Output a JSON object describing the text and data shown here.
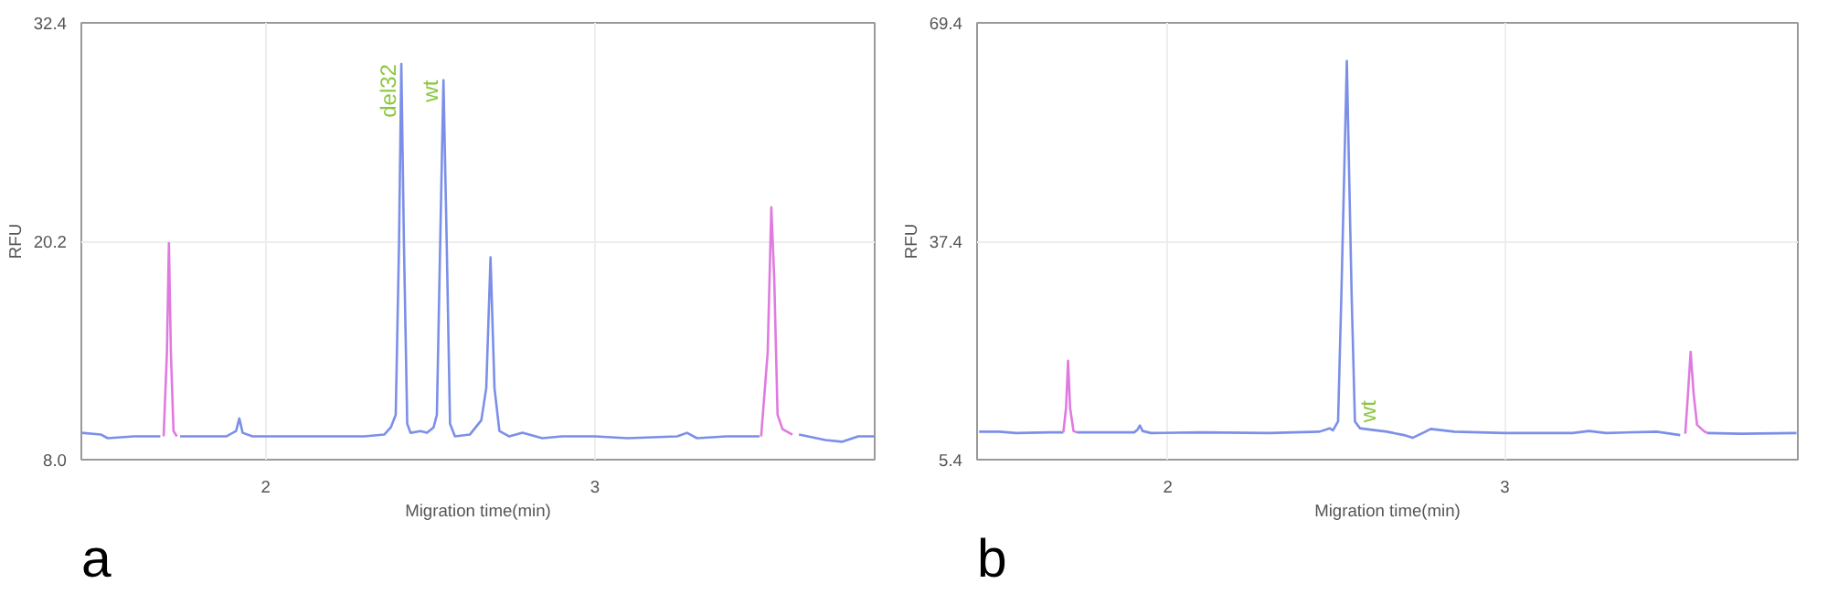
{
  "chart_data": [
    {
      "type": "line",
      "xlabel": "Migration time(min)",
      "ylabel": "RFU",
      "xlim": [
        1.44,
        3.85
      ],
      "ylim": [
        8.0,
        32.4
      ],
      "xticks": [
        2,
        3
      ],
      "yticks": [
        {
          "value": 8.0,
          "label": "8.0"
        },
        20.2,
        32.4
      ],
      "grid": true,
      "annotations": [
        {
          "text": "del32",
          "x": 2.412,
          "y": 30.1
        },
        {
          "text": "wt",
          "x": 2.54,
          "y": 29.2
        },
        "a"
      ],
      "series": [
        {
          "color": "#7b8fe8",
          "x": [
            1.44,
            1.5,
            1.52,
            1.6,
            1.68,
            1.7,
            1.74,
            1.8,
            1.88,
            1.91,
            1.92,
            1.93,
            1.96,
            2.1,
            2.3,
            2.36,
            2.38,
            2.395,
            2.405,
            2.412,
            2.42,
            2.43,
            2.44,
            2.47,
            2.49,
            2.51,
            2.52,
            2.53,
            2.54,
            2.55,
            2.56,
            2.575,
            2.62,
            2.655,
            2.67,
            2.683,
            2.695,
            2.71,
            2.74,
            2.78,
            2.84,
            2.9,
            3.0,
            3.1,
            3.25,
            3.28,
            3.31,
            3.4,
            3.5,
            3.55,
            3.62,
            3.7,
            3.75,
            3.8,
            3.85
          ],
          "values": [
            9.5,
            9.4,
            9.2,
            9.3,
            9.3,
            null,
            9.3,
            9.3,
            9.3,
            9.6,
            10.3,
            9.5,
            9.3,
            9.3,
            9.3,
            9.4,
            9.8,
            10.5,
            20,
            30.1,
            20,
            10,
            9.5,
            9.6,
            9.5,
            9.8,
            10.5,
            20,
            29.2,
            20,
            10,
            9.3,
            9.4,
            10.2,
            12,
            19.3,
            12,
            9.6,
            9.3,
            9.5,
            9.2,
            9.3,
            9.3,
            9.2,
            9.3,
            9.5,
            9.2,
            9.3,
            9.3,
            null,
            9.4,
            9.1,
            9.0,
            9.3,
            9.3
          ]
        },
        {
          "color": "#e07ae0",
          "x": [
            1.69,
            1.7,
            1.706,
            1.712,
            1.72,
            1.73,
            2.0,
            3.505,
            3.525,
            3.536,
            3.545,
            3.555,
            3.57,
            3.6
          ],
          "values": [
            9.3,
            14,
            20.1,
            14,
            9.6,
            9.3,
            null,
            9.3,
            14,
            22.1,
            18,
            10.5,
            9.7,
            9.4
          ]
        }
      ]
    },
    {
      "type": "line",
      "xlabel": "Migration time(min)",
      "ylabel": "RFU",
      "xlim": [
        1.434,
        3.869
      ],
      "ylim": [
        5.4,
        69.4
      ],
      "xticks": [
        2,
        3
      ],
      "yticks": [
        5.4,
        37.4,
        69.4
      ],
      "grid": true,
      "annotations": [
        {
          "text": "wt",
          "x": 2.6,
          "y": 9.8
        },
        "b"
      ],
      "series": [
        {
          "color": "#7b8fe8",
          "x": [
            1.44,
            1.5,
            1.55,
            1.65,
            1.69,
            1.7,
            1.73,
            1.8,
            1.9,
            1.91,
            1.917,
            1.925,
            1.95,
            2.1,
            2.3,
            2.45,
            2.48,
            2.49,
            2.505,
            2.515,
            2.531,
            2.545,
            2.555,
            2.57,
            2.6,
            2.65,
            2.7,
            2.726,
            2.76,
            2.78,
            2.85,
            3.0,
            3.2,
            3.25,
            3.3,
            3.45,
            3.52,
            3.56,
            3.6,
            3.7,
            3.865
          ],
          "values": [
            9.5,
            9.5,
            9.3,
            9.4,
            9.4,
            null,
            9.4,
            9.4,
            9.4,
            9.8,
            10.4,
            9.6,
            9.3,
            9.4,
            9.3,
            9.5,
            10,
            9.7,
            11,
            30,
            63.8,
            30,
            11,
            10,
            9.8,
            9.5,
            9.0,
            8.6,
            9.4,
            9.9,
            9.5,
            9.3,
            9.3,
            9.6,
            9.3,
            9.5,
            9.0,
            null,
            9.3,
            9.2,
            9.3
          ]
        },
        {
          "color": "#e07ae0",
          "x": [
            1.69,
            1.698,
            1.704,
            1.71,
            1.72,
            1.73,
            2.0,
            3.535,
            3.543,
            3.551,
            3.56,
            3.57,
            3.59,
            3.6
          ],
          "values": [
            9.4,
            13,
            19.9,
            13,
            9.6,
            9.4,
            null,
            9.2,
            15,
            21.2,
            15,
            10.5,
            9.6,
            9.3
          ]
        }
      ]
    }
  ]
}
